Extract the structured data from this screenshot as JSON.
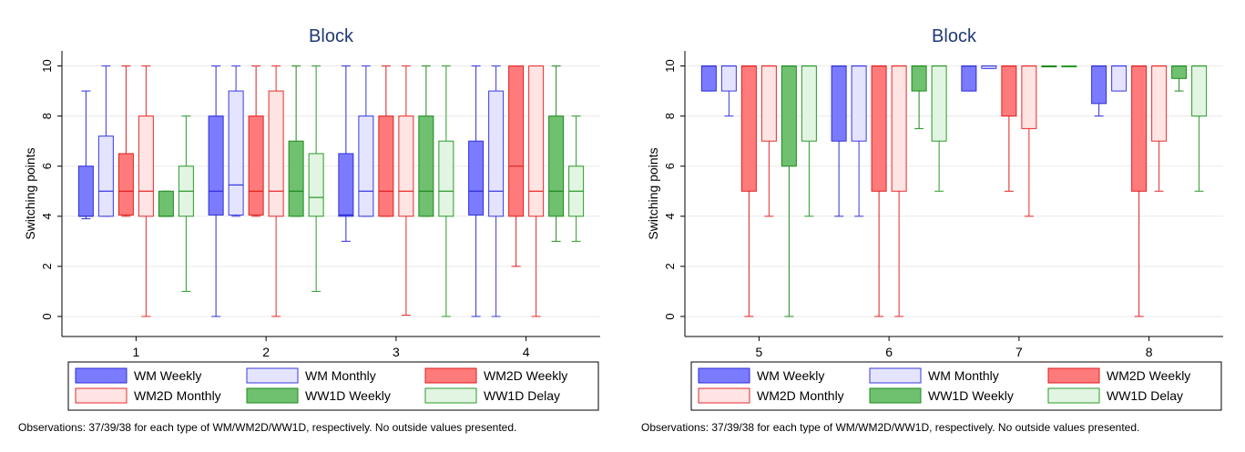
{
  "chart_data": [
    {
      "type": "boxplot",
      "title": "Block",
      "ylabel": "Switching points",
      "ylim": [
        -0.8,
        10.6
      ],
      "yticks": [
        0,
        2,
        4,
        6,
        8,
        10
      ],
      "categories": [
        "1",
        "2",
        "3",
        "4"
      ],
      "series": [
        {
          "name": "WM Weekly",
          "boxes": [
            {
              "min": 3.9,
              "q1": 4.0,
              "median": 4.0,
              "q3": 6.0,
              "max": 9.0
            },
            {
              "min": 0,
              "q1": 4.05,
              "median": 5.0,
              "q3": 8.0,
              "max": 10.0
            },
            {
              "min": 3.0,
              "q1": 4.0,
              "median": 4.05,
              "q3": 6.5,
              "max": 10.0
            },
            {
              "min": 0,
              "q1": 4.05,
              "median": 5.0,
              "q3": 7.0,
              "max": 10.0
            }
          ]
        },
        {
          "name": "WM Monthly",
          "boxes": [
            {
              "min": 4.0,
              "q1": 4.0,
              "median": 5.0,
              "q3": 7.2,
              "max": 10.0
            },
            {
              "min": 4.0,
              "q1": 4.05,
              "median": 5.25,
              "q3": 9.0,
              "max": 10.0
            },
            {
              "min": 4.0,
              "q1": 4.0,
              "median": 5.0,
              "q3": 8.0,
              "max": 10.0
            },
            {
              "min": 0,
              "q1": 4.0,
              "median": 5.0,
              "q3": 9.0,
              "max": 10.0
            }
          ]
        },
        {
          "name": "WM2D Weekly",
          "boxes": [
            {
              "min": 4.0,
              "q1": 4.05,
              "median": 5.0,
              "q3": 6.5,
              "max": 10.0
            },
            {
              "min": 4.0,
              "q1": 4.05,
              "median": 5.0,
              "q3": 8.0,
              "max": 10.0
            },
            {
              "min": 4.0,
              "q1": 4.0,
              "median": 5.0,
              "q3": 8.0,
              "max": 10.0
            },
            {
              "min": 2.0,
              "q1": 4.0,
              "median": 6.0,
              "q3": 10.0,
              "max": 10.0
            }
          ]
        },
        {
          "name": "WM2D Monthly",
          "boxes": [
            {
              "min": 0,
              "q1": 4.0,
              "median": 5.0,
              "q3": 8.0,
              "max": 10.0
            },
            {
              "min": 0,
              "q1": 4.0,
              "median": 5.0,
              "q3": 9.0,
              "max": 10.0
            },
            {
              "min": 0.05,
              "q1": 4.0,
              "median": 5.0,
              "q3": 8.0,
              "max": 10.0
            },
            {
              "min": 0,
              "q1": 4.0,
              "median": 5.0,
              "q3": 10.0,
              "max": 10.0
            }
          ]
        },
        {
          "name": "WW1D Weekly",
          "boxes": [
            {
              "min": 4.0,
              "q1": 4.0,
              "median": 4.0,
              "q3": 5.0,
              "max": 5.0
            },
            {
              "min": 4.0,
              "q1": 4.0,
              "median": 5.0,
              "q3": 7.0,
              "max": 10.0
            },
            {
              "min": 4.0,
              "q1": 4.0,
              "median": 5.0,
              "q3": 8.0,
              "max": 10.0
            },
            {
              "min": 3.0,
              "q1": 4.0,
              "median": 5.0,
              "q3": 8.0,
              "max": 10.0
            }
          ]
        },
        {
          "name": "WW1D Delay",
          "boxes": [
            {
              "min": 1.0,
              "q1": 4.0,
              "median": 5.0,
              "q3": 6.0,
              "max": 8.0
            },
            {
              "min": 1.0,
              "q1": 4.0,
              "median": 4.75,
              "q3": 6.5,
              "max": 10.0
            },
            {
              "min": 0,
              "q1": 4.0,
              "median": 5.0,
              "q3": 7.0,
              "max": 10.0
            },
            {
              "min": 3.0,
              "q1": 4.0,
              "median": 5.0,
              "q3": 6.0,
              "max": 8.0
            }
          ]
        }
      ],
      "legend_position": "bottom",
      "note": "Observations: 37/39/38 for each type of WM/WM2D/WW1D, respectively. No outside values presented.",
      "grid": true
    },
    {
      "type": "boxplot",
      "title": "Block",
      "ylabel": "Switching points",
      "ylim": [
        -0.8,
        10.6
      ],
      "yticks": [
        0,
        2,
        4,
        6,
        8,
        10
      ],
      "categories": [
        "5",
        "6",
        "7",
        "8"
      ],
      "series": [
        {
          "name": "WM Weekly",
          "boxes": [
            {
              "min": 9.0,
              "q1": 9.0,
              "median": 10.0,
              "q3": 10.0,
              "max": 10.0
            },
            {
              "min": 4.0,
              "q1": 7.0,
              "median": 10.0,
              "q3": 10.0,
              "max": 10.0
            },
            {
              "min": 9.0,
              "q1": 9.0,
              "median": 10.0,
              "q3": 10.0,
              "max": 10.0
            },
            {
              "min": 8.0,
              "q1": 8.5,
              "median": 10.0,
              "q3": 10.0,
              "max": 10.0
            }
          ]
        },
        {
          "name": "WM Monthly",
          "boxes": [
            {
              "min": 8.0,
              "q1": 9.0,
              "median": 10.0,
              "q3": 10.0,
              "max": 10.0
            },
            {
              "min": 4.0,
              "q1": 7.0,
              "median": 10.0,
              "q3": 10.0,
              "max": 10.0
            },
            {
              "min": 9.9,
              "q1": 9.9,
              "median": 10.0,
              "q3": 10.0,
              "max": 10.0
            },
            {
              "min": 9.0,
              "q1": 9.0,
              "median": 10.0,
              "q3": 10.0,
              "max": 10.0
            }
          ]
        },
        {
          "name": "WM2D Weekly",
          "boxes": [
            {
              "min": 0,
              "q1": 5.0,
              "median": 10.0,
              "q3": 10.0,
              "max": 10.0
            },
            {
              "min": 0,
              "q1": 5.0,
              "median": 10.0,
              "q3": 10.0,
              "max": 10.0
            },
            {
              "min": 5.0,
              "q1": 8.0,
              "median": 10.0,
              "q3": 10.0,
              "max": 10.0
            },
            {
              "min": 0,
              "q1": 5.0,
              "median": 10.0,
              "q3": 10.0,
              "max": 10.0
            }
          ]
        },
        {
          "name": "WM2D Monthly",
          "boxes": [
            {
              "min": 4.0,
              "q1": 7.0,
              "median": 10.0,
              "q3": 10.0,
              "max": 10.0
            },
            {
              "min": 0,
              "q1": 5.0,
              "median": 10.0,
              "q3": 10.0,
              "max": 10.0
            },
            {
              "min": 4.0,
              "q1": 7.5,
              "median": 10.0,
              "q3": 10.0,
              "max": 10.0
            },
            {
              "min": 5.0,
              "q1": 7.0,
              "median": 10.0,
              "q3": 10.0,
              "max": 10.0
            }
          ]
        },
        {
          "name": "WW1D Weekly",
          "boxes": [
            {
              "min": 0,
              "q1": 6.0,
              "median": 10.0,
              "q3": 10.0,
              "max": 10.0
            },
            {
              "min": 7.5,
              "q1": 9.0,
              "median": 10.0,
              "q3": 10.0,
              "max": 10.0
            },
            {
              "min": 10.0,
              "q1": 10.0,
              "median": 10.0,
              "q3": 10.0,
              "max": 10.0
            },
            {
              "min": 9.0,
              "q1": 9.5,
              "median": 10.0,
              "q3": 10.0,
              "max": 10.0
            }
          ]
        },
        {
          "name": "WW1D Delay",
          "boxes": [
            {
              "min": 4.0,
              "q1": 7.0,
              "median": 10.0,
              "q3": 10.0,
              "max": 10.0
            },
            {
              "min": 5.0,
              "q1": 7.0,
              "median": 10.0,
              "q3": 10.0,
              "max": 10.0
            },
            {
              "min": 10.0,
              "q1": 10.0,
              "median": 10.0,
              "q3": 10.0,
              "max": 10.0
            },
            {
              "min": 5.0,
              "q1": 8.0,
              "median": 10.0,
              "q3": 10.0,
              "max": 10.0
            }
          ]
        }
      ],
      "legend_position": "bottom",
      "note": "Observations: 37/39/38 for each type of WM/WM2D/WW1D, respectively. No outside values presented.",
      "grid": true
    }
  ],
  "series_style": [
    {
      "fill": "#7b7bff",
      "stroke": "#2e2ed6"
    },
    {
      "fill": "#e4e4ff",
      "stroke": "#3a3ae0"
    },
    {
      "fill": "#ff7b7b",
      "stroke": "#e01e1e"
    },
    {
      "fill": "#ffe4e4",
      "stroke": "#e82a2a"
    },
    {
      "fill": "#6fc06f",
      "stroke": "#1e8a1e"
    },
    {
      "fill": "#e2f5e2",
      "stroke": "#2a9a2a"
    }
  ]
}
